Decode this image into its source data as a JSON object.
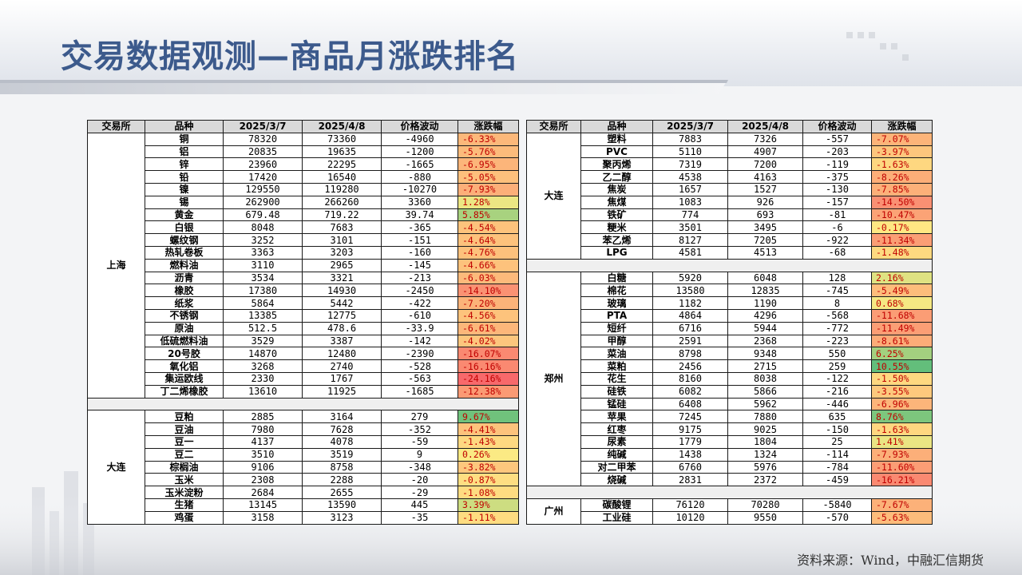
{
  "title": "交易数据观测—商品月涨跌排名",
  "source": "资料来源：Wind，中融汇信期货",
  "headers": [
    "交易所",
    "品种",
    "2025/3/7",
    "2025/4/8",
    "价格波动",
    "涨跌幅"
  ],
  "left_groups": [
    {
      "exchange": "上海",
      "rows": [
        [
          "铜",
          "78320",
          "73360",
          "-4960",
          "-6.33%"
        ],
        [
          "铝",
          "20835",
          "19635",
          "-1200",
          "-5.76%"
        ],
        [
          "锌",
          "23960",
          "22295",
          "-1665",
          "-6.95%"
        ],
        [
          "铅",
          "17420",
          "16540",
          "-880",
          "-5.05%"
        ],
        [
          "镍",
          "129550",
          "119280",
          "-10270",
          "-7.93%"
        ],
        [
          "锡",
          "262900",
          "266260",
          "3360",
          "1.28%"
        ],
        [
          "黄金",
          "679.48",
          "719.22",
          "39.74",
          "5.85%"
        ],
        [
          "白银",
          "8048",
          "7683",
          "-365",
          "-4.54%"
        ],
        [
          "螺纹钢",
          "3252",
          "3101",
          "-151",
          "-4.64%"
        ],
        [
          "热轧卷板",
          "3363",
          "3203",
          "-160",
          "-4.76%"
        ],
        [
          "燃料油",
          "3110",
          "2965",
          "-145",
          "-4.66%"
        ],
        [
          "沥青",
          "3534",
          "3321",
          "-213",
          "-6.03%"
        ],
        [
          "橡胶",
          "17380",
          "14930",
          "-2450",
          "-14.10%"
        ],
        [
          "纸浆",
          "5864",
          "5442",
          "-422",
          "-7.20%"
        ],
        [
          "不锈钢",
          "13385",
          "12775",
          "-610",
          "-4.56%"
        ],
        [
          "原油",
          "512.5",
          "478.6",
          "-33.9",
          "-6.61%"
        ],
        [
          "低硫燃料油",
          "3529",
          "3387",
          "-142",
          "-4.02%"
        ],
        [
          "20号胶",
          "14870",
          "12480",
          "-2390",
          "-16.07%"
        ],
        [
          "氧化铝",
          "3268",
          "2740",
          "-528",
          "-16.16%"
        ],
        [
          "集运欧线",
          "2330",
          "1767",
          "-563",
          "-24.16%"
        ],
        [
          "丁二烯橡胶",
          "13610",
          "11925",
          "-1685",
          "-12.38%"
        ]
      ]
    },
    {
      "exchange": "大连",
      "rows": [
        [
          "豆粕",
          "2885",
          "3164",
          "279",
          "9.67%"
        ],
        [
          "豆油",
          "7980",
          "7628",
          "-352",
          "-4.41%"
        ],
        [
          "豆一",
          "4137",
          "4078",
          "-59",
          "-1.43%"
        ],
        [
          "豆二",
          "3510",
          "3519",
          "9",
          "0.26%"
        ],
        [
          "棕榈油",
          "9106",
          "8758",
          "-348",
          "-3.82%"
        ],
        [
          "玉米",
          "2308",
          "2288",
          "-20",
          "-0.87%"
        ],
        [
          "玉米淀粉",
          "2684",
          "2655",
          "-29",
          "-1.08%"
        ],
        [
          "生猪",
          "13145",
          "13590",
          "445",
          "3.39%"
        ],
        [
          "鸡蛋",
          "3158",
          "3123",
          "-35",
          "-1.11%"
        ]
      ]
    }
  ],
  "right_groups": [
    {
      "exchange": "大连",
      "rows": [
        [
          "塑料",
          "7883",
          "7326",
          "-557",
          "-7.07%"
        ],
        [
          "PVC",
          "5110",
          "4907",
          "-203",
          "-3.97%"
        ],
        [
          "聚丙烯",
          "7319",
          "7200",
          "-119",
          "-1.63%"
        ],
        [
          "乙二醇",
          "4538",
          "4163",
          "-375",
          "-8.26%"
        ],
        [
          "焦炭",
          "1657",
          "1527",
          "-130",
          "-7.85%"
        ],
        [
          "焦煤",
          "1083",
          "926",
          "-157",
          "-14.50%"
        ],
        [
          "铁矿",
          "774",
          "693",
          "-81",
          "-10.47%"
        ],
        [
          "粳米",
          "3501",
          "3495",
          "-6",
          "-0.17%"
        ],
        [
          "苯乙烯",
          "8127",
          "7205",
          "-922",
          "-11.34%"
        ],
        [
          "LPG",
          "4581",
          "4513",
          "-68",
          "-1.48%"
        ]
      ]
    },
    {
      "exchange": "郑州",
      "rows": [
        [
          "白糖",
          "5920",
          "6048",
          "128",
          "2.16%"
        ],
        [
          "棉花",
          "13580",
          "12835",
          "-745",
          "-5.49%"
        ],
        [
          "玻璃",
          "1182",
          "1190",
          "8",
          "0.68%"
        ],
        [
          "PTA",
          "4864",
          "4296",
          "-568",
          "-11.68%"
        ],
        [
          "短纤",
          "6716",
          "5944",
          "-772",
          "-11.49%"
        ],
        [
          "甲醇",
          "2591",
          "2368",
          "-223",
          "-8.61%"
        ],
        [
          "菜油",
          "8798",
          "9348",
          "550",
          "6.25%"
        ],
        [
          "菜粕",
          "2456",
          "2715",
          "259",
          "10.55%"
        ],
        [
          "花生",
          "8160",
          "8038",
          "-122",
          "-1.50%"
        ],
        [
          "硅铁",
          "6082",
          "5866",
          "-216",
          "-3.55%"
        ],
        [
          "锰硅",
          "6408",
          "5962",
          "-446",
          "-6.96%"
        ],
        [
          "苹果",
          "7245",
          "7880",
          "635",
          "8.76%"
        ],
        [
          "红枣",
          "9175",
          "9025",
          "-150",
          "-1.63%"
        ],
        [
          "尿素",
          "1779",
          "1804",
          "25",
          "1.41%"
        ],
        [
          "纯碱",
          "1438",
          "1324",
          "-114",
          "-7.93%"
        ],
        [
          "对二甲苯",
          "6760",
          "5976",
          "-784",
          "-11.60%"
        ],
        [
          "烧碱",
          "2831",
          "2372",
          "-459",
          "-16.21%"
        ]
      ]
    },
    {
      "exchange": "广州",
      "rows": [
        [
          "碳酸锂",
          "76120",
          "70280",
          "-5840",
          "-7.67%"
        ],
        [
          "工业硅",
          "10120",
          "9550",
          "-570",
          "-5.63%"
        ]
      ]
    }
  ],
  "colors": {
    "title": "#3c5a8c",
    "up_strong": "#63be7b",
    "down_strong": "#f8696b",
    "neutral": "#ffeb84"
  }
}
